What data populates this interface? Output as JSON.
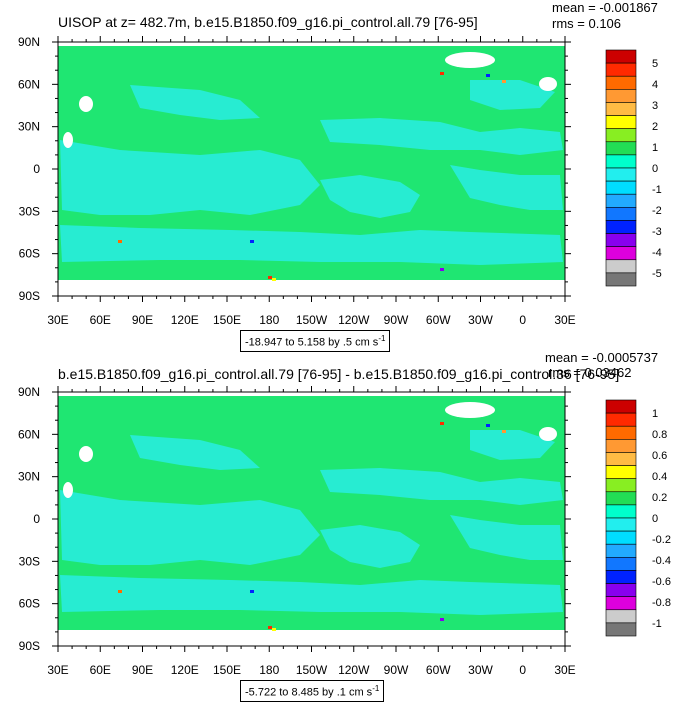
{
  "chart_data": [
    {
      "type": "heatmap",
      "title": "UISOP at z= 482.7m, b.e15.B1850.f09_g16.pi_control.all.79 [76-95]",
      "stats": {
        "mean": "mean = -0.001867",
        "rms": "rms = 0.106"
      },
      "range_label": "-18.947 to 5.158 by .5 cm s",
      "range_sup": "-1",
      "x_ticks": [
        "30E",
        "60E",
        "90E",
        "120E",
        "150E",
        "180",
        "150W",
        "120W",
        "90W",
        "60W",
        "30W",
        "0",
        "30E"
      ],
      "y_ticks": [
        "90N",
        "60N",
        "30N",
        "0",
        "30S",
        "60S",
        "90S"
      ],
      "colorbar": {
        "labels": [
          "5",
          "4",
          "3",
          "2",
          "1",
          "0",
          "-1",
          "-2",
          "-3",
          "-4",
          "-5"
        ],
        "colors": [
          "#cc0000",
          "#ff2a00",
          "#ff6a00",
          "#ff9933",
          "#ffbb44",
          "#ffff00",
          "#88ee22",
          "#22dd55",
          "#00ffcc",
          "#22eeee",
          "#00ddff",
          "#22aaff",
          "#1177ff",
          "#0022ff",
          "#8800ee",
          "#dd00dd",
          "#cccccc",
          "#777777"
        ]
      },
      "colors": {
        "background_field": "#1fe672",
        "low_field": "#27ecd2",
        "land": "#ffffff"
      }
    },
    {
      "type": "heatmap",
      "title": "b.e15.B1850.f09_g16.pi_control.all.79 [76-95] - b.e15.B1850.f09_g16.pi_control.36 [76-95]",
      "stats": {
        "mean": "mean = -0.0005737",
        "rms": "rms = 0.03462"
      },
      "range_label": "-5.722 to 8.485 by .1 cm s",
      "range_sup": "-1",
      "x_ticks": [
        "30E",
        "60E",
        "90E",
        "120E",
        "150E",
        "180",
        "150W",
        "120W",
        "90W",
        "60W",
        "30W",
        "0",
        "30E"
      ],
      "y_ticks": [
        "90N",
        "60N",
        "30N",
        "0",
        "30S",
        "60S",
        "90S"
      ],
      "colorbar": {
        "labels": [
          "1",
          "0.8",
          "0.6",
          "0.4",
          "0.2",
          "0",
          "-0.2",
          "-0.4",
          "-0.6",
          "-0.8",
          "-1"
        ],
        "colors": [
          "#cc0000",
          "#ff2a00",
          "#ff6a00",
          "#ff9933",
          "#ffbb44",
          "#ffff00",
          "#88ee22",
          "#22dd55",
          "#00ffcc",
          "#22eeee",
          "#00ddff",
          "#22aaff",
          "#1177ff",
          "#0022ff",
          "#8800ee",
          "#dd00dd",
          "#cccccc",
          "#777777"
        ]
      },
      "colors": {
        "background_field": "#1fe672",
        "low_field": "#27ecd2",
        "land": "#ffffff"
      }
    }
  ]
}
